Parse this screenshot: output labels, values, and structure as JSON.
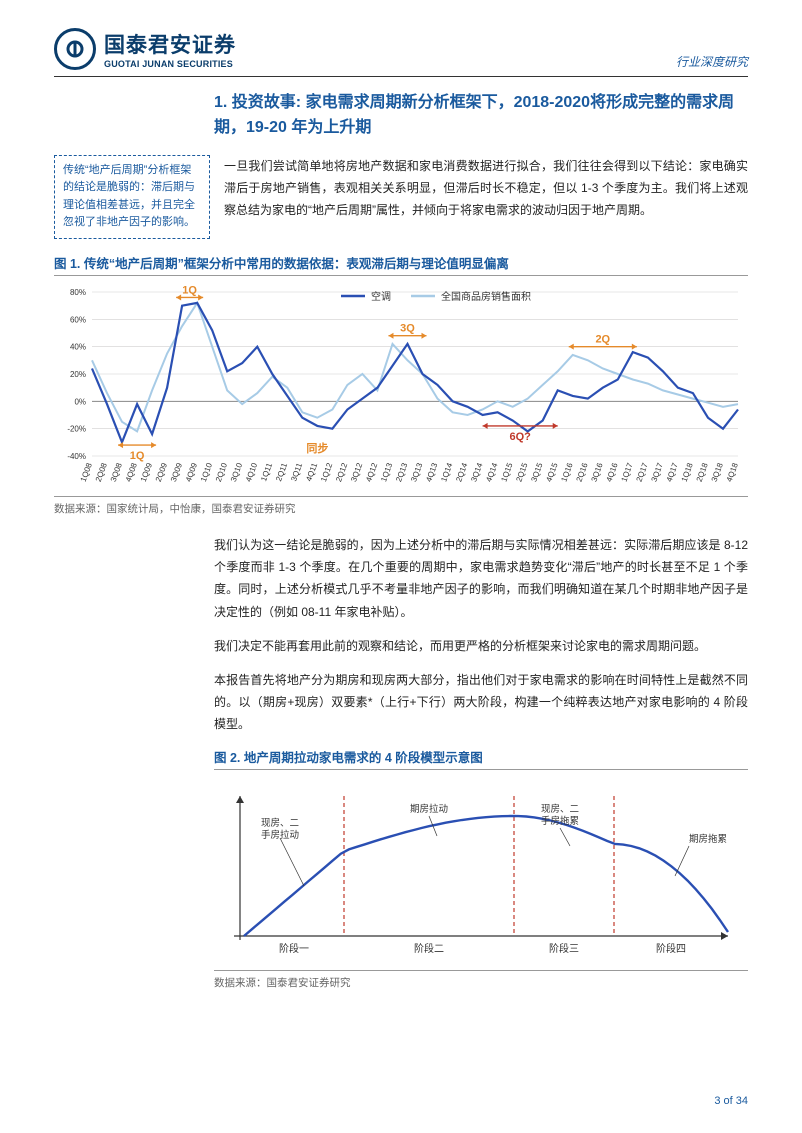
{
  "header": {
    "logo_cn": "国泰君安证券",
    "logo_en": "GUOTAI JUNAN SECURITIES",
    "right": "行业深度研究"
  },
  "section_title": "1.  投资故事: 家电需求周期新分析框架下，2018-2020将形成完整的需求周期，19-20 年为上升期",
  "sidebox": "传统“地产后周期”分析框架的结论是脆弱的：滞后期与理论值相差甚远，并且完全忽视了非地产因子的影响。",
  "intro_para": "一旦我们尝试简单地将房地产数据和家电消费数据进行拟合，我们往往会得到以下结论：家电确实滞后于房地产销售，表观相关关系明显，但滞后时长不稳定，但以 1-3 个季度为主。我们将上述观察总结为家电的“地产后周期”属性，并倾向于将家电需求的波动归因于地产周期。",
  "fig1": {
    "title": "图 1.  传统“地产后周期”框架分析中常用的数据依据：表观滞后期与理论值明显偏离",
    "legend": {
      "a": "空调",
      "b": "全国商品房销售面积"
    },
    "source": "数据来源：国家统计局，中怡康，国泰君安证券研究",
    "ylim": [
      -40,
      80
    ],
    "ytick_step": 20,
    "y_labels": [
      "-40%",
      "-20%",
      "0%",
      "20%",
      "40%",
      "60%",
      "80%"
    ],
    "x_labels": [
      "1Q08",
      "2Q08",
      "3Q08",
      "4Q08",
      "1Q09",
      "2Q09",
      "3Q09",
      "4Q09",
      "1Q10",
      "2Q10",
      "3Q10",
      "4Q10",
      "1Q11",
      "2Q11",
      "3Q11",
      "4Q11",
      "1Q12",
      "2Q12",
      "3Q12",
      "4Q12",
      "1Q13",
      "2Q13",
      "3Q13",
      "4Q13",
      "1Q14",
      "2Q14",
      "3Q14",
      "4Q14",
      "1Q15",
      "2Q15",
      "3Q15",
      "4Q15",
      "1Q16",
      "2Q16",
      "3Q16",
      "4Q16",
      "1Q17",
      "2Q17",
      "3Q17",
      "4Q17",
      "1Q18",
      "2Q18",
      "3Q18",
      "4Q18"
    ],
    "series_kongtiao": [
      24,
      -2,
      -30,
      -2,
      -24,
      10,
      70,
      72,
      52,
      22,
      28,
      40,
      20,
      4,
      -12,
      -18,
      -20,
      -6,
      2,
      10,
      26,
      42,
      20,
      12,
      0,
      -4,
      -10,
      -8,
      -14,
      -22,
      -14,
      8,
      4,
      2,
      10,
      16,
      36,
      32,
      22,
      10,
      6,
      -12,
      -20,
      -6
    ],
    "series_housing": [
      30,
      6,
      -15,
      -22,
      8,
      35,
      55,
      72,
      40,
      8,
      -2,
      6,
      18,
      10,
      -8,
      -12,
      -6,
      12,
      20,
      8,
      42,
      30,
      20,
      2,
      -8,
      -10,
      -6,
      0,
      -4,
      2,
      12,
      22,
      34,
      30,
      24,
      20,
      16,
      13,
      8,
      5,
      2,
      -1,
      -4,
      -2
    ],
    "line_a_color": "#2a4fb3",
    "line_b_color": "#a7cbe6",
    "grid_color": "#d0cfcf",
    "annotations": {
      "q1_top": "1Q",
      "q1_bot": "1Q",
      "sync": "同步",
      "q3": "3Q",
      "q2": "2Q",
      "q6": "6Q?"
    }
  },
  "para2": "我们认为这一结论是脆弱的，因为上述分析中的滞后期与实际情况相差甚远：实际滞后期应该是 8-12 个季度而非 1-3 个季度。在几个重要的周期中，家电需求趋势变化“滞后”地产的时长甚至不足 1 个季度。同时，上述分析模式几乎不考量非地产因子的影响，而我们明确知道在某几个时期非地产因子是决定性的（例如 08-11 年家电补贴）。",
  "para3": "我们决定不能再套用此前的观察和结论，而用更严格的分析框架来讨论家电的需求周期问题。",
  "para4": "本报告首先将地产分为期房和现房两大部分，指出他们对于家电需求的影响在时间特性上是截然不同的。以（期房+现房）双要素*（上行+下行）两大阶段，构建一个纯粹表达地产对家电影响的 4 阶段模型。",
  "fig2": {
    "title": "图 2.  地产周期拉动家电需求的 4 阶段模型示意图",
    "source": "数据来源：国泰君安证券研究",
    "labels": {
      "l1": "现房、二手房拉动",
      "l2": "期房拉动",
      "l3": "现房、二手房拖累",
      "l4": "期房拖累",
      "p1": "阶段一",
      "p2": "阶段二",
      "p3": "阶段三",
      "p4": "阶段四"
    },
    "curve_color": "#2a4fb3",
    "divider_color": "#c0392b"
  },
  "pagenum": "3 of 34"
}
